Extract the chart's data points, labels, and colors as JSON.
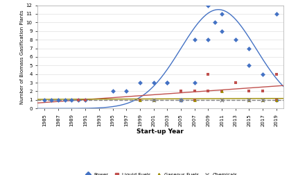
{
  "title": "",
  "xlabel": "Start-up Year",
  "ylabel": "Number of Biomass Gasification Plants",
  "xlim": [
    1984,
    2020
  ],
  "ylim": [
    0,
    12
  ],
  "yticks": [
    0,
    1,
    2,
    3,
    4,
    5,
    6,
    7,
    8,
    9,
    10,
    11,
    12
  ],
  "xticks": [
    1985,
    1987,
    1989,
    1991,
    1993,
    1995,
    1997,
    1999,
    2001,
    2003,
    2005,
    2007,
    2009,
    2011,
    2013,
    2015,
    2017,
    2019
  ],
  "power_x": [
    1985,
    1986,
    1987,
    1988,
    1989,
    1990,
    1991,
    1995,
    1997,
    1999,
    2001,
    2003,
    2003,
    2005,
    2007,
    2007,
    2009,
    2009,
    2010,
    2011,
    2011,
    2013,
    2015,
    2015,
    2017,
    2019,
    2019
  ],
  "power_y": [
    1,
    1,
    1,
    1,
    1,
    1,
    1,
    2,
    2,
    3,
    3,
    3,
    3,
    1,
    8,
    3,
    12,
    8,
    10,
    11,
    9,
    8,
    7,
    5,
    4,
    11,
    1
  ],
  "liquid_x": [
    1990,
    1991,
    1999,
    2005,
    2007,
    2007,
    2009,
    2009,
    2011,
    2011,
    2013,
    2015,
    2017,
    2019,
    2019
  ],
  "liquid_y": [
    1,
    1,
    1,
    2,
    2,
    1,
    4,
    2,
    2,
    2,
    3,
    2,
    2,
    4,
    1
  ],
  "gaseous_x": [
    1999,
    2001,
    2007,
    2011,
    2015,
    2017,
    2019
  ],
  "gaseous_y": [
    1,
    1,
    1,
    2,
    1,
    1,
    1
  ],
  "chem_x": [
    2001,
    2005,
    2011,
    2015,
    2017
  ],
  "chem_y": [
    1,
    1,
    1,
    1,
    1
  ],
  "color_power": "#4472C4",
  "color_liquid": "#C0504D",
  "color_gaseous": "#9C8B00",
  "color_chem": "#808080",
  "bg_color": "#FFFFFF",
  "gauss_a": 11.5,
  "gauss_mu": 2010.5,
  "gauss_sigma": 5.5
}
